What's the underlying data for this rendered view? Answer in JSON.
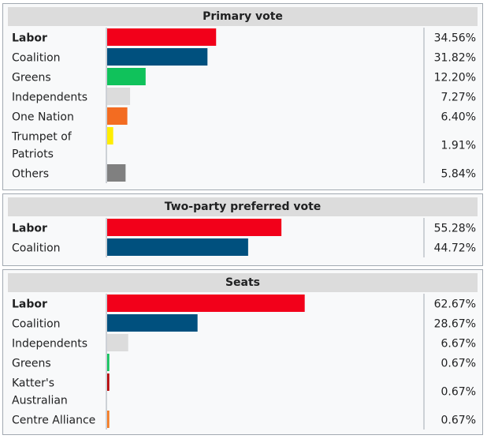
{
  "chart_data": [
    {
      "type": "bar",
      "title": "Primary vote",
      "categories": [
        "Labor",
        "Coalition",
        "Greens",
        "Independents",
        "One Nation",
        "Trumpet of Patriots",
        "Others"
      ],
      "category_lines": [
        [
          "Labor"
        ],
        [
          "Coalition"
        ],
        [
          "Greens"
        ],
        [
          "Independents"
        ],
        [
          "One Nation"
        ],
        [
          "Trumpet of",
          "Patriots"
        ],
        [
          "Others"
        ]
      ],
      "values": [
        34.56,
        31.82,
        12.2,
        7.27,
        6.4,
        1.91,
        5.84
      ],
      "value_labels": [
        "34.56%",
        "31.82%",
        "12.20%",
        "7.27%",
        "6.40%",
        "1.91%",
        "5.84%"
      ],
      "colors": [
        "#f2001a",
        "#00507e",
        "#10c25b",
        "#dcdcdc",
        "#f36c21",
        "#ffed00",
        "#808080"
      ],
      "bold_first": true,
      "xlim": [
        0,
        100
      ]
    },
    {
      "type": "bar",
      "title": "Two-party preferred vote",
      "categories": [
        "Labor",
        "Coalition"
      ],
      "category_lines": [
        [
          "Labor"
        ],
        [
          "Coalition"
        ]
      ],
      "values": [
        55.28,
        44.72
      ],
      "value_labels": [
        "55.28%",
        "44.72%"
      ],
      "colors": [
        "#f2001a",
        "#00507e"
      ],
      "bold_first": true,
      "xlim": [
        0,
        100
      ]
    },
    {
      "type": "bar",
      "title": "Seats",
      "categories": [
        "Labor",
        "Coalition",
        "Independents",
        "Greens",
        "Katter's Australian",
        "Centre Alliance"
      ],
      "category_lines": [
        [
          "Labor"
        ],
        [
          "Coalition"
        ],
        [
          "Independents"
        ],
        [
          "Greens"
        ],
        [
          "Katter's",
          "Australian"
        ],
        [
          "Centre Alliance"
        ]
      ],
      "values": [
        62.67,
        28.67,
        6.67,
        0.67,
        0.67,
        0.67
      ],
      "value_labels": [
        "62.67%",
        "28.67%",
        "6.67%",
        "0.67%",
        "0.67%",
        "0.67%"
      ],
      "colors": [
        "#f2001a",
        "#00507e",
        "#dcdcdc",
        "#10c25b",
        "#b50204",
        "#f47920"
      ],
      "bold_first": true,
      "xlim": [
        0,
        100
      ]
    }
  ]
}
